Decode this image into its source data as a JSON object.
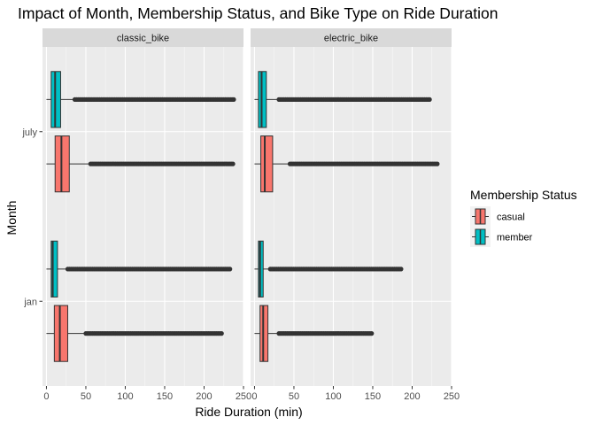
{
  "chart_data": {
    "type": "boxplot",
    "title": "Impact of Month, Membership Status, and Bike Type on Ride Duration",
    "xlabel": "Ride Duration (min)",
    "ylabel": "Month",
    "xlim": [
      -5,
      250
    ],
    "x_ticks": [
      0,
      50,
      100,
      150,
      200,
      250
    ],
    "y_categories": [
      "jan",
      "july"
    ],
    "facets": [
      "classic_bike",
      "electric_bike"
    ],
    "grid": true,
    "legend": {
      "title": "Membership Status",
      "position": "right",
      "entries": [
        {
          "name": "casual",
          "color": "#F8766D"
        },
        {
          "name": "member",
          "color": "#00BFC4"
        }
      ]
    },
    "panels": [
      {
        "facet": "classic_bike",
        "groups": [
          {
            "month": "july",
            "status": "member",
            "whisker_low": 0,
            "q1": 6,
            "median": 11,
            "q3": 18,
            "whisker_high": 36,
            "outliers_from": 36,
            "outliers_to": 239
          },
          {
            "month": "july",
            "status": "casual",
            "whisker_low": 0,
            "q1": 11,
            "median": 19,
            "q3": 29,
            "whisker_high": 56,
            "outliers_from": 56,
            "outliers_to": 237
          },
          {
            "month": "jan",
            "status": "member",
            "whisker_low": 0,
            "q1": 6,
            "median": 8,
            "q3": 14,
            "whisker_high": 27,
            "outliers_from": 27,
            "outliers_to": 233
          },
          {
            "month": "jan",
            "status": "casual",
            "whisker_low": 0,
            "q1": 10,
            "median": 17,
            "q3": 27,
            "whisker_high": 50,
            "outliers_from": 50,
            "outliers_to": 224
          }
        ]
      },
      {
        "facet": "electric_bike",
        "groups": [
          {
            "month": "july",
            "status": "member",
            "whisker_low": 0,
            "q1": 5,
            "median": 9,
            "q3": 15,
            "whisker_high": 31,
            "outliers_from": 31,
            "outliers_to": 223
          },
          {
            "month": "july",
            "status": "casual",
            "whisker_low": 0,
            "q1": 8,
            "median": 13,
            "q3": 23,
            "whisker_high": 45,
            "outliers_from": 45,
            "outliers_to": 232
          },
          {
            "month": "jan",
            "status": "member",
            "whisker_low": 0,
            "q1": 5,
            "median": 7,
            "q3": 11,
            "whisker_high": 20,
            "outliers_from": 20,
            "outliers_to": 186
          },
          {
            "month": "jan",
            "status": "casual",
            "whisker_low": 0,
            "q1": 7,
            "median": 11,
            "q3": 17,
            "whisker_high": 31,
            "outliers_from": 31,
            "outliers_to": 149
          }
        ]
      }
    ]
  }
}
